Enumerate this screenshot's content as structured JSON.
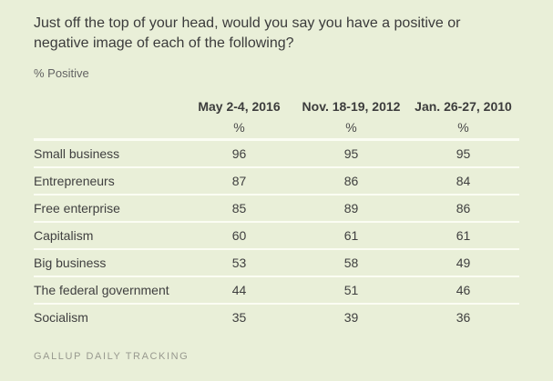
{
  "page": {
    "background_color": "#e9efd8",
    "divider_color": "#fbfdf3",
    "text_color": "#3f3f3f",
    "title": "Just off the top of your head, would you say you have a positive or negative image of each of the following?",
    "subtitle": "% Positive",
    "footer": "GALLUP DAILY TRACKING"
  },
  "chart_data": {
    "type": "table",
    "title": "Just off the top of your head, would you say you have a positive or negative image of each of the following?",
    "subtitle": "% Positive",
    "columns": [
      "May 2-4, 2016",
      "Nov. 18-19, 2012",
      "Jan. 26-27, 2010"
    ],
    "units": [
      "%",
      "%",
      "%"
    ],
    "rows": [
      {
        "label": "Small business",
        "values": [
          96,
          95,
          95
        ]
      },
      {
        "label": "Entrepreneurs",
        "values": [
          87,
          86,
          84
        ]
      },
      {
        "label": "Free enterprise",
        "values": [
          85,
          89,
          86
        ]
      },
      {
        "label": "Capitalism",
        "values": [
          60,
          61,
          61
        ]
      },
      {
        "label": "Big business",
        "values": [
          53,
          58,
          49
        ]
      },
      {
        "label": "The federal government",
        "values": [
          44,
          51,
          46
        ]
      },
      {
        "label": "Socialism",
        "values": [
          35,
          39,
          36
        ]
      }
    ],
    "source": "GALLUP DAILY TRACKING",
    "layout": {
      "value_alignment": "center",
      "grid": "horizontal-dividers"
    }
  }
}
